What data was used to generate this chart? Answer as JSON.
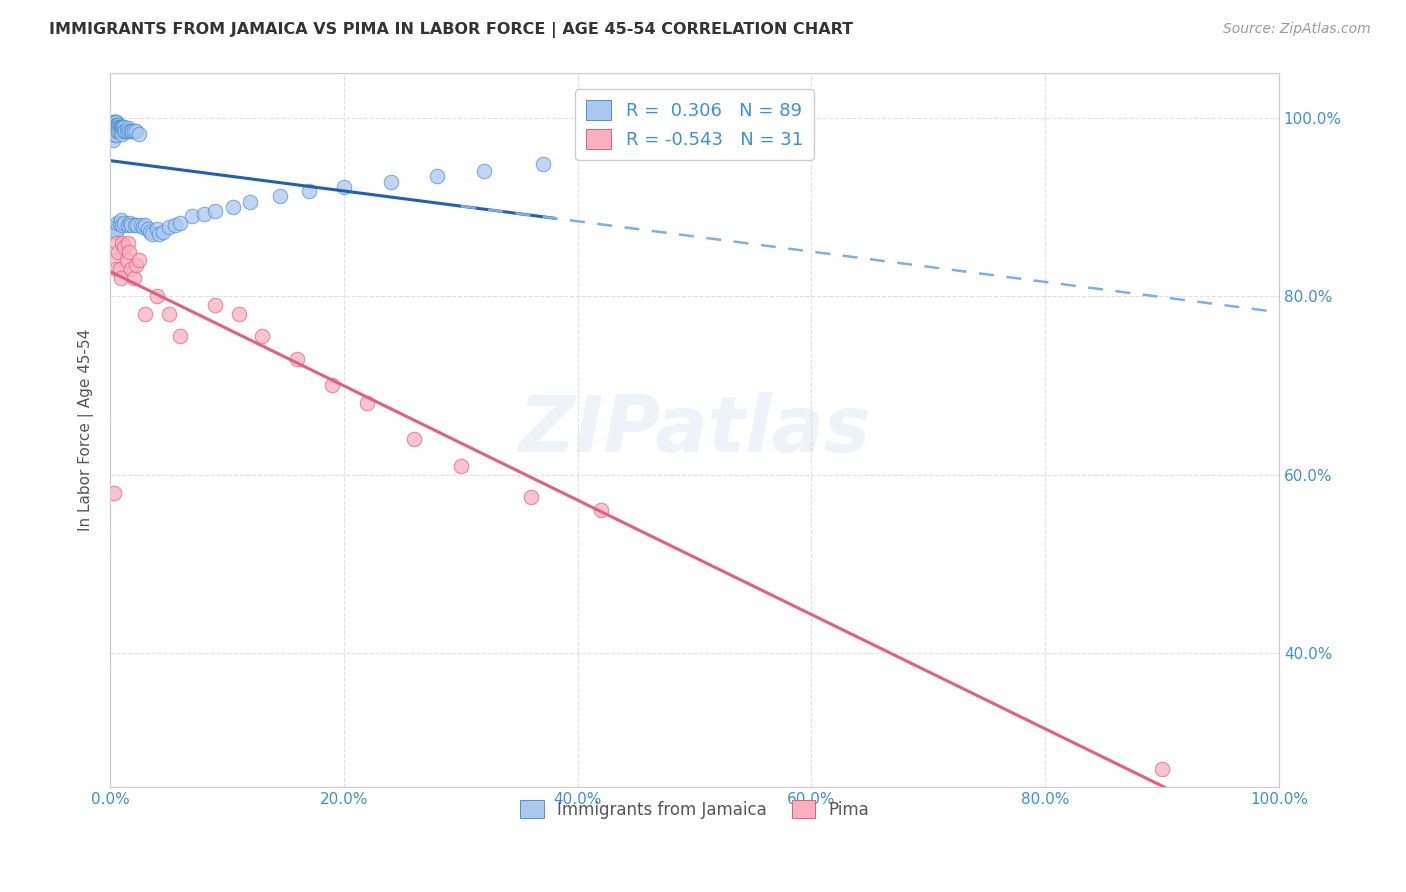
{
  "title": "IMMIGRANTS FROM JAMAICA VS PIMA IN LABOR FORCE | AGE 45-54 CORRELATION CHART",
  "source": "Source: ZipAtlas.com",
  "ylabel": "In Labor Force | Age 45-54",
  "xlim": [
    0.0,
    1.0
  ],
  "ylim": [
    0.25,
    1.05
  ],
  "xticks": [
    0.0,
    0.2,
    0.4,
    0.6,
    0.8,
    1.0
  ],
  "yticks": [
    0.4,
    0.6,
    0.8,
    1.0
  ],
  "xticklabels": [
    "0.0%",
    "20.0%",
    "40.0%",
    "60.0%",
    "80.0%",
    "100.0%"
  ],
  "yticklabels_right": [
    "40.0%",
    "60.0%",
    "80.0%",
    "100.0%"
  ],
  "legend_r1": "R =  0.306",
  "legend_n1": "N = 89",
  "legend_r2": "R = -0.543",
  "legend_n2": "N = 31",
  "blue_scatter_color": "#A8C8F0",
  "blue_scatter_edge": "#5090D0",
  "blue_line_color": "#2060B0",
  "blue_dashed_color": "#80B0E0",
  "pink_scatter_color": "#F8B0C0",
  "pink_scatter_edge": "#E06080",
  "pink_line_color": "#E06080",
  "axis_color": "#CCCCCC",
  "grid_color": "#DDDDDD",
  "text_color": "#4090D0",
  "title_color": "#333333",
  "jamaica_x": [
    0.002,
    0.003,
    0.003,
    0.003,
    0.003,
    0.004,
    0.004,
    0.004,
    0.004,
    0.004,
    0.004,
    0.004,
    0.005,
    0.005,
    0.005,
    0.005,
    0.005,
    0.005,
    0.005,
    0.005,
    0.005,
    0.005,
    0.005,
    0.005,
    0.005,
    0.005,
    0.005,
    0.006,
    0.006,
    0.006,
    0.006,
    0.006,
    0.007,
    0.007,
    0.007,
    0.007,
    0.008,
    0.008,
    0.008,
    0.008,
    0.009,
    0.009,
    0.01,
    0.01,
    0.01,
    0.01,
    0.01,
    0.011,
    0.012,
    0.012,
    0.012,
    0.013,
    0.014,
    0.015,
    0.015,
    0.016,
    0.017,
    0.018,
    0.018,
    0.019,
    0.02,
    0.021,
    0.022,
    0.023,
    0.025,
    0.026,
    0.028,
    0.03,
    0.032,
    0.034,
    0.036,
    0.04,
    0.042,
    0.045,
    0.05,
    0.055,
    0.06,
    0.07,
    0.08,
    0.09,
    0.105,
    0.12,
    0.145,
    0.17,
    0.2,
    0.24,
    0.28,
    0.32,
    0.37
  ],
  "jamaica_y": [
    0.975,
    0.995,
    0.995,
    0.99,
    0.985,
    0.995,
    0.99,
    0.99,
    0.988,
    0.985,
    0.982,
    0.98,
    0.995,
    0.995,
    0.992,
    0.99,
    0.988,
    0.988,
    0.986,
    0.985,
    0.983,
    0.982,
    0.98,
    0.878,
    0.876,
    0.874,
    0.872,
    0.992,
    0.99,
    0.988,
    0.985,
    0.882,
    0.992,
    0.99,
    0.988,
    0.985,
    0.99,
    0.988,
    0.985,
    0.882,
    0.99,
    0.885,
    0.99,
    0.988,
    0.985,
    0.982,
    0.88,
    0.988,
    0.99,
    0.985,
    0.882,
    0.985,
    0.985,
    0.988,
    0.88,
    0.985,
    0.882,
    0.985,
    0.88,
    0.985,
    0.985,
    0.88,
    0.985,
    0.88,
    0.982,
    0.88,
    0.878,
    0.88,
    0.875,
    0.872,
    0.87,
    0.875,
    0.87,
    0.872,
    0.878,
    0.88,
    0.882,
    0.89,
    0.892,
    0.895,
    0.9,
    0.905,
    0.912,
    0.918,
    0.922,
    0.928,
    0.935,
    0.94,
    0.948
  ],
  "pima_x": [
    0.003,
    0.004,
    0.005,
    0.006,
    0.007,
    0.008,
    0.009,
    0.01,
    0.012,
    0.014,
    0.015,
    0.016,
    0.018,
    0.02,
    0.022,
    0.025,
    0.03,
    0.04,
    0.05,
    0.06,
    0.09,
    0.11,
    0.13,
    0.16,
    0.19,
    0.22,
    0.26,
    0.3,
    0.36,
    0.42,
    0.9
  ],
  "pima_y": [
    0.58,
    0.84,
    0.83,
    0.86,
    0.85,
    0.83,
    0.82,
    0.86,
    0.855,
    0.84,
    0.86,
    0.85,
    0.83,
    0.82,
    0.835,
    0.84,
    0.78,
    0.8,
    0.78,
    0.755,
    0.79,
    0.78,
    0.755,
    0.73,
    0.7,
    0.68,
    0.64,
    0.61,
    0.575,
    0.56,
    0.27
  ],
  "watermark": "ZIPatlas"
}
